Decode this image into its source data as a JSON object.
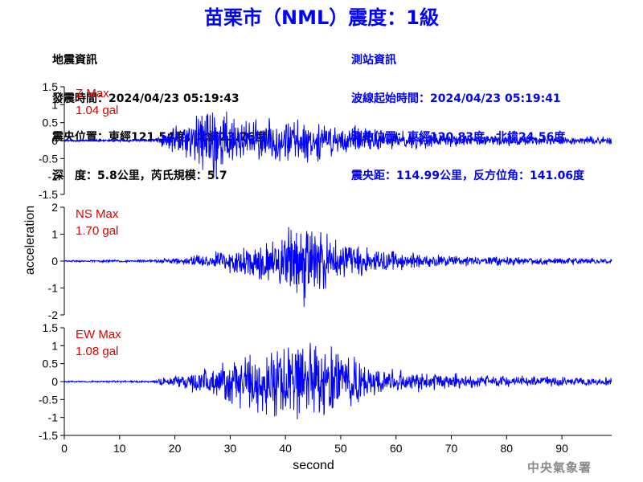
{
  "header": {
    "title": "苗栗市（NML）震度：1級",
    "left_info": [
      "地震資訊",
      "發震時間：2024/04/23 05:19:43",
      "震央位置：東經121.54度，北緯23.76度",
      "深　度：5.8公里，芮氏規模：5.7"
    ],
    "right_info": [
      "測站資訊",
      "波線起始時間：2024/04/23 05:19:41",
      "測站位置：東經120.83度，北緯24.56度",
      "震央距：114.99公里，反方位角：141.06度"
    ]
  },
  "footer": {
    "credit": "中央氣象署"
  },
  "colors": {
    "trace": "#0000ff",
    "label": "#e00000",
    "title": "#0000ff"
  },
  "chart_data": {
    "type": "line",
    "xlabel": "second",
    "ylabel": "acceleration",
    "xlim": [
      0,
      99
    ],
    "xticks": [
      0,
      10,
      20,
      30,
      40,
      50,
      60,
      70,
      80,
      90
    ],
    "panels": [
      {
        "name": "Z",
        "label": "Z Max",
        "max_text": "1.04 gal",
        "max_value": 1.04,
        "ylim": [
          -1.5,
          1.5
        ],
        "yticks": [
          -1.5,
          -1,
          -0.5,
          0,
          0.5,
          1,
          1.5
        ],
        "ytick_labels": [
          "-1.5",
          "-1",
          "-0.5",
          "0",
          "0.5",
          "1",
          "1.5"
        ],
        "envelope": [
          [
            0,
            0.02
          ],
          [
            16,
            0.03
          ],
          [
            17.5,
            0.12
          ],
          [
            20,
            0.28
          ],
          [
            24,
            0.5
          ],
          [
            26,
            0.9
          ],
          [
            28,
            0.75
          ],
          [
            32,
            0.4
          ],
          [
            40,
            0.45
          ],
          [
            45,
            0.4
          ],
          [
            50,
            0.3
          ],
          [
            60,
            0.2
          ],
          [
            70,
            0.12
          ],
          [
            80,
            0.1
          ],
          [
            90,
            0.08
          ],
          [
            99,
            0.08
          ]
        ],
        "seed": 11
      },
      {
        "name": "NS",
        "label": "NS Max",
        "max_text": "1.70 gal",
        "max_value": 1.7,
        "ylim": [
          -2,
          2
        ],
        "yticks": [
          -2,
          -1,
          0,
          1,
          2
        ],
        "ytick_labels": [
          "-2",
          "-1",
          "0",
          "1",
          "2"
        ],
        "envelope": [
          [
            0,
            0.03
          ],
          [
            16,
            0.05
          ],
          [
            20,
            0.12
          ],
          [
            30,
            0.4
          ],
          [
            35,
            0.7
          ],
          [
            40,
            1.0
          ],
          [
            43,
            1.5
          ],
          [
            47,
            1.0
          ],
          [
            52,
            0.6
          ],
          [
            60,
            0.35
          ],
          [
            70,
            0.2
          ],
          [
            80,
            0.15
          ],
          [
            90,
            0.12
          ],
          [
            99,
            0.1
          ]
        ],
        "seed": 29
      },
      {
        "name": "EW",
        "label": "EW Max",
        "max_text": "1.08 gal",
        "max_value": 1.08,
        "ylim": [
          -1.5,
          1.5
        ],
        "yticks": [
          -1.5,
          -1,
          -0.5,
          0,
          0.5,
          1,
          1.5
        ],
        "ytick_labels": [
          "-1.5",
          "-1",
          "-0.5",
          "0",
          "0.5",
          "1",
          "1.5"
        ],
        "envelope": [
          [
            0,
            0.02
          ],
          [
            16,
            0.03
          ],
          [
            18,
            0.1
          ],
          [
            22,
            0.2
          ],
          [
            27,
            0.4
          ],
          [
            32,
            0.65
          ],
          [
            38,
            0.85
          ],
          [
            43,
            1.0
          ],
          [
            50,
            0.75
          ],
          [
            55,
            0.45
          ],
          [
            60,
            0.3
          ],
          [
            70,
            0.2
          ],
          [
            80,
            0.14
          ],
          [
            90,
            0.12
          ],
          [
            99,
            0.1
          ]
        ],
        "seed": 47
      }
    ]
  }
}
